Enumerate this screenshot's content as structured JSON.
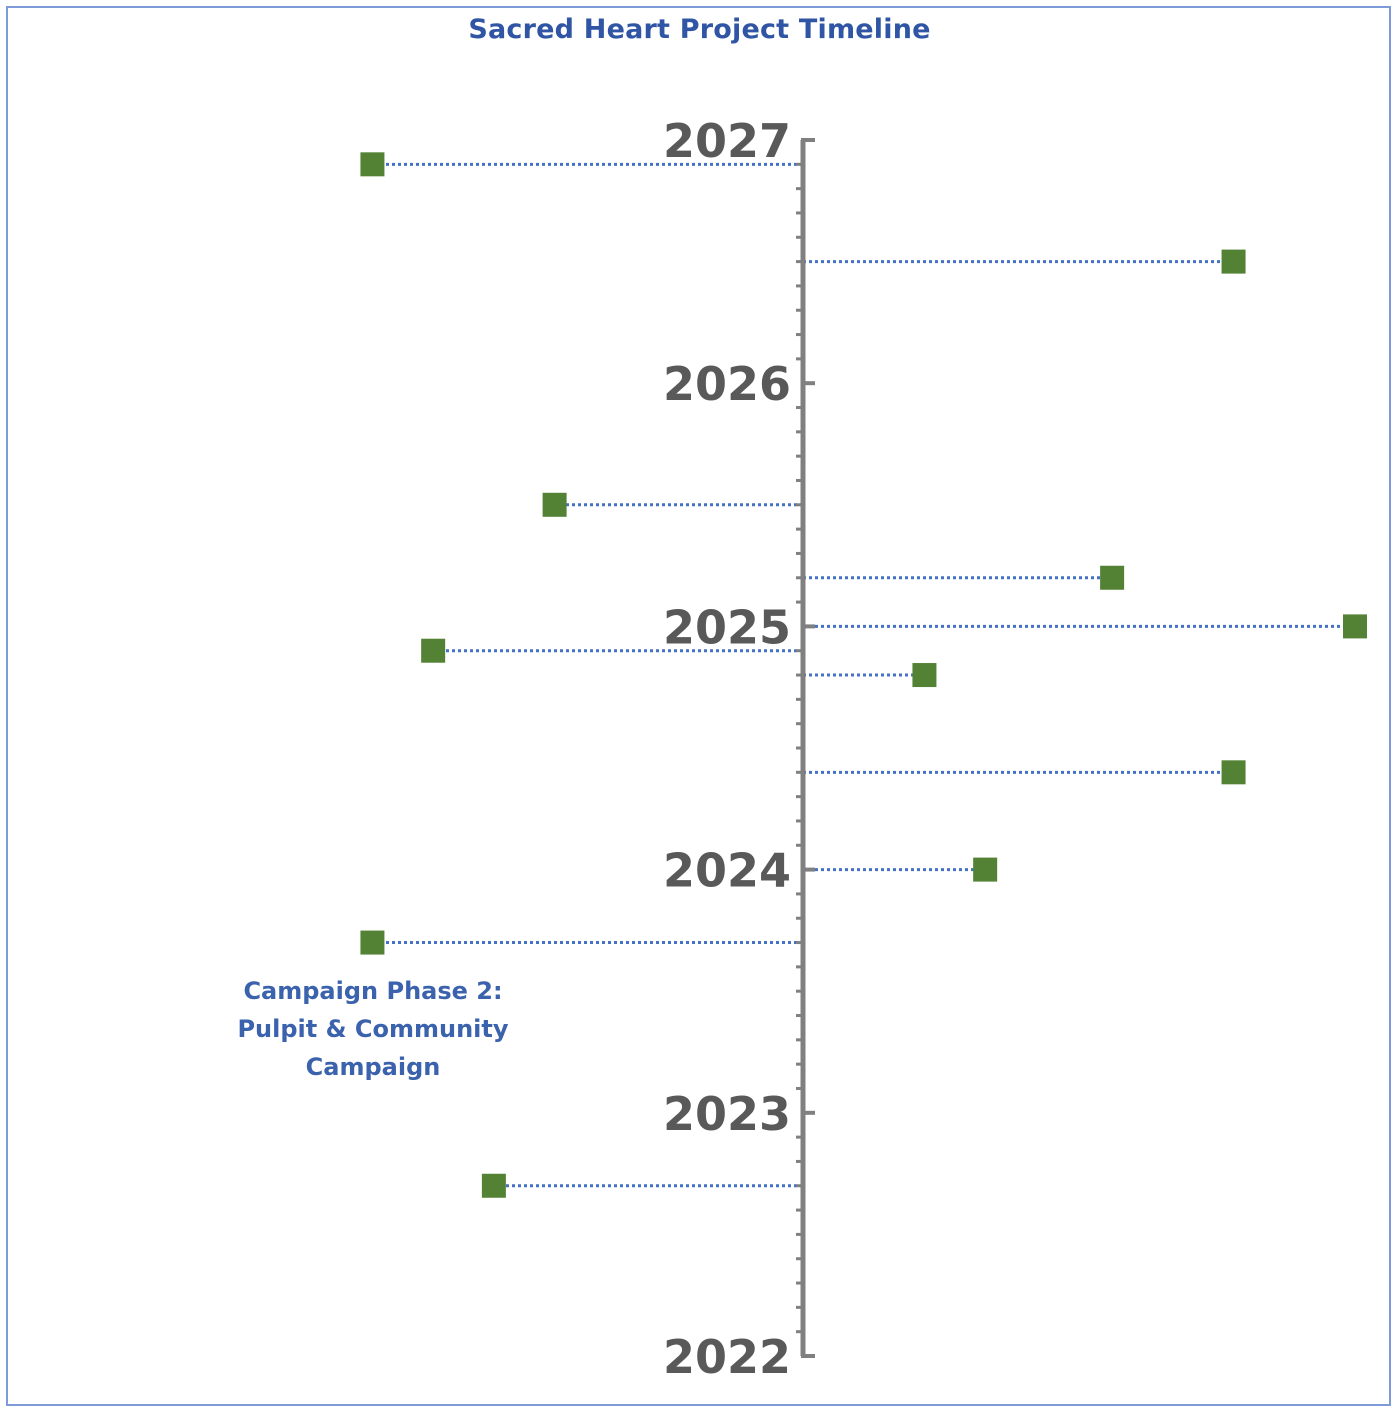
{
  "chart_data": {
    "type": "scatter",
    "title": "Sacred Heart Project Timeline",
    "axis": {
      "orientation": "vertical",
      "position": "center",
      "ylim": [
        2022,
        2027
      ],
      "ticks": [
        "2022",
        "2023",
        "2024",
        "2025",
        "2026",
        "2027"
      ],
      "minor_ticks_per_year": 9,
      "color": "#808080"
    },
    "connector_style": "dotted",
    "connector_color": "#4472c4",
    "marker_color": "#548235",
    "points": [
      {
        "date": 2026.9,
        "offset": -0.78
      },
      {
        "date": 2026.5,
        "offset": 0.78
      },
      {
        "date": 2025.5,
        "offset": -0.45
      },
      {
        "date": 2025.2,
        "offset": 0.56
      },
      {
        "date": 2025.0,
        "offset": 1.0
      },
      {
        "date": 2024.9,
        "offset": -0.67
      },
      {
        "date": 2024.8,
        "offset": 0.22
      },
      {
        "date": 2024.4,
        "offset": 0.78
      },
      {
        "date": 2024.0,
        "offset": 0.33
      },
      {
        "date": 2023.7,
        "offset": -0.78,
        "label": "Campaign Phase 2: Pulpit & Community Campaign"
      },
      {
        "date": 2022.7,
        "offset": -0.56
      }
    ]
  }
}
